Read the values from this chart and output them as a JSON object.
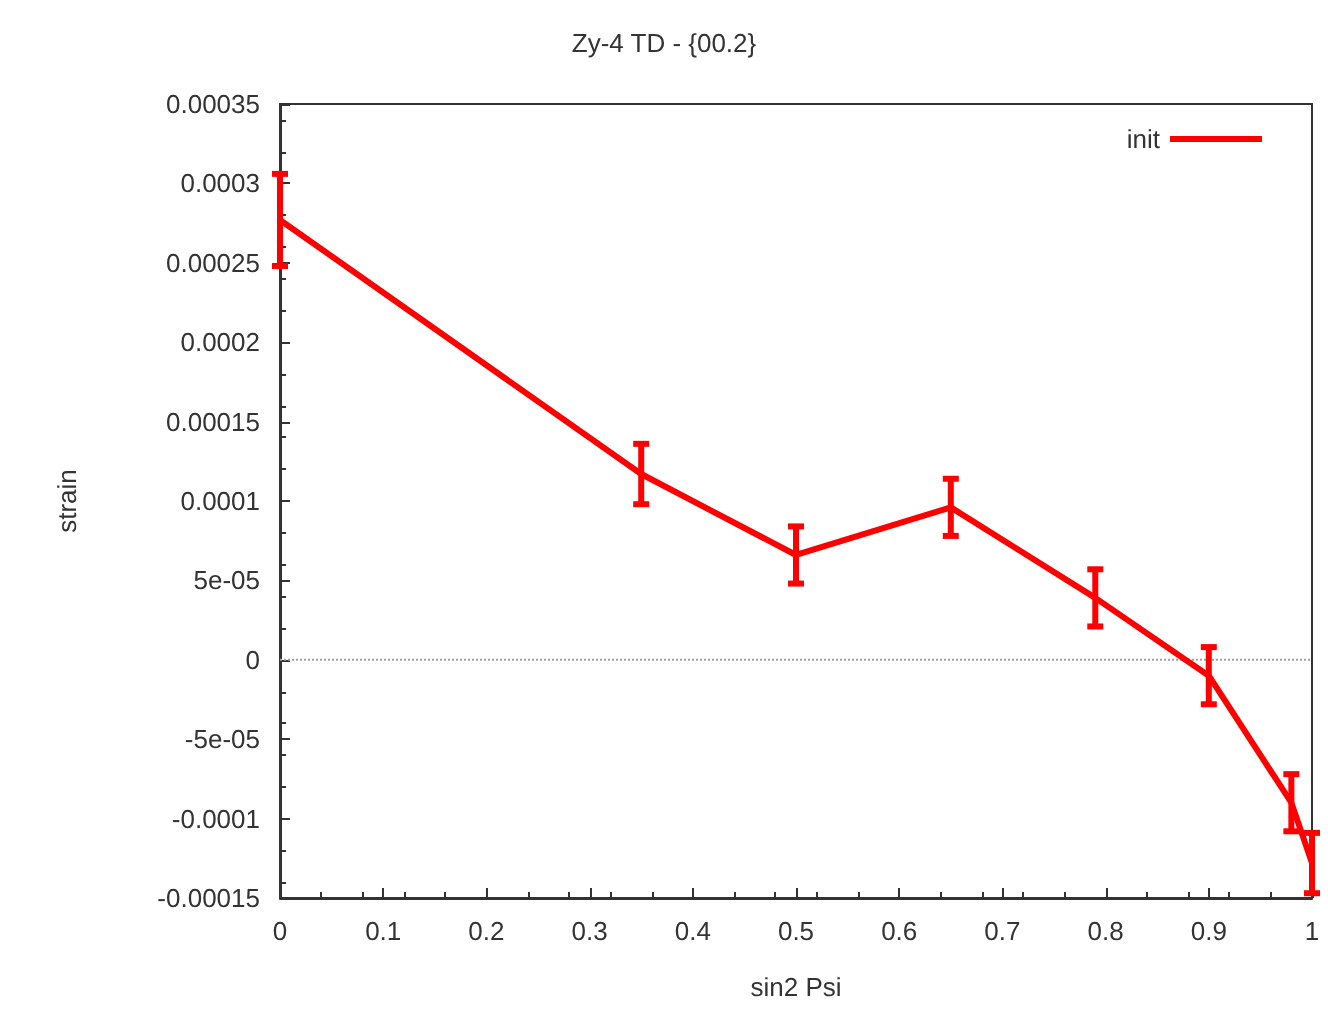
{
  "chart_data": {
    "type": "line",
    "title": "Zy-4 TD - {00.2}",
    "xlabel": "sin2 Psi",
    "ylabel": "strain",
    "x": [
      0,
      0.35,
      0.5,
      0.65,
      0.79,
      0.9,
      0.98,
      1.0
    ],
    "series": [
      {
        "name": "init",
        "color": "#ff0000",
        "values": [
          0.000277,
          0.000117,
          6.6e-05,
          9.6e-05,
          3.9e-05,
          -1e-05,
          -9e-05,
          -0.000128
        ],
        "errors": [
          2.9e-05,
          1.9e-05,
          1.8e-05,
          1.8e-05,
          1.8e-05,
          1.8e-05,
          1.8e-05,
          1.9e-05
        ]
      }
    ],
    "xlim": [
      0,
      1
    ],
    "xticks": [
      0,
      0.1,
      0.2,
      0.3,
      0.4,
      0.5,
      0.6,
      0.7,
      0.8,
      0.9,
      1
    ],
    "ylim": [
      -0.00015,
      0.00035
    ],
    "yticks": [
      -0.00015,
      -0.0001,
      {
        "value": -5e-05,
        "label": "-5e-05"
      },
      0,
      {
        "value": 5e-05,
        "label": "5e-05"
      },
      0.0001,
      0.00015,
      0.0002,
      0.00025,
      0.0003,
      0.00035
    ],
    "ref_lines": [
      {
        "axis": "y",
        "value": 0,
        "color": "#a0a0a0",
        "line_style": "dotted"
      }
    ],
    "grid": false,
    "legend": "top right",
    "marker": "none",
    "line_style": "solid"
  }
}
